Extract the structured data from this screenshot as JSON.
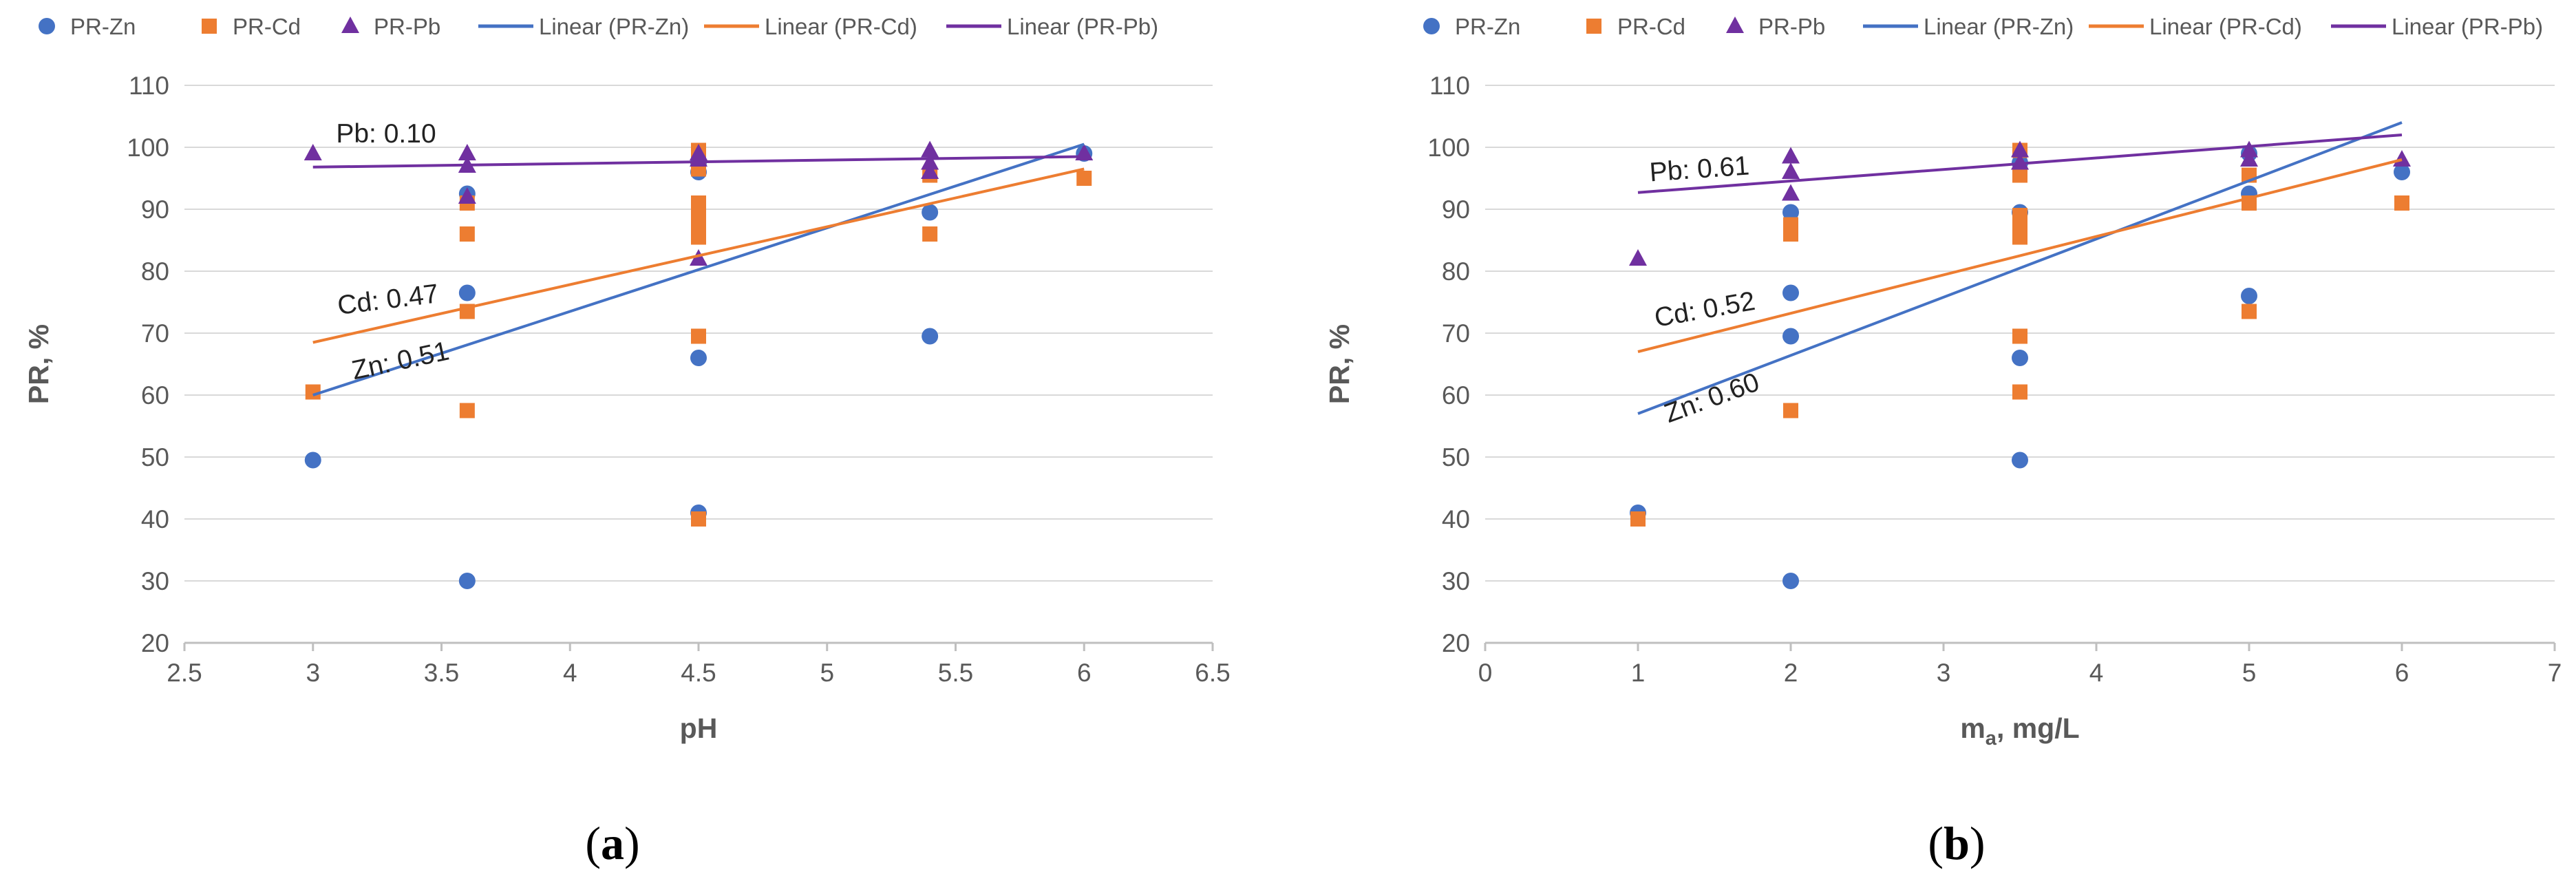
{
  "colors": {
    "zn": "#4472C4",
    "cd": "#ED7D31",
    "pb": "#7030A0",
    "grid": "#D9D9D9",
    "axis": "#BFBFBF"
  },
  "legend": {
    "items": [
      {
        "label": "PR-Zn",
        "marker": "circle",
        "series": "zn"
      },
      {
        "label": "PR-Cd",
        "marker": "square",
        "series": "cd"
      },
      {
        "label": "PR-Pb",
        "marker": "triangle",
        "series": "pb"
      },
      {
        "label": "Linear (PR-Zn)",
        "marker": "line",
        "series": "zn"
      },
      {
        "label": "Linear (PR-Cd)",
        "marker": "line",
        "series": "cd"
      },
      {
        "label": "Linear (PR-Pb)",
        "marker": "line",
        "series": "pb"
      }
    ]
  },
  "chart_data": [
    {
      "id": "a",
      "type": "scatter",
      "caption_letter": "a",
      "xlabel": "pH",
      "ylabel": "PR, %",
      "xlim": [
        2.5,
        6.5
      ],
      "ylim": [
        20,
        110
      ],
      "xticks": [
        "2.5",
        "3",
        "3.5",
        "4",
        "4.5",
        "5",
        "5.5",
        "6",
        "6.5"
      ],
      "yticks": [
        "20",
        "30",
        "40",
        "50",
        "60",
        "70",
        "80",
        "90",
        "100",
        "110"
      ],
      "grid": "horizontal",
      "series": [
        {
          "name": "PR-Zn",
          "key": "zn",
          "marker": "circle",
          "points": [
            [
              3,
              49.5
            ],
            [
              3.6,
              30
            ],
            [
              3.6,
              76.5
            ],
            [
              3.6,
              92.5
            ],
            [
              4.5,
              41
            ],
            [
              4.5,
              66
            ],
            [
              4.5,
              96
            ],
            [
              4.5,
              97.5
            ],
            [
              5.4,
              69.5
            ],
            [
              5.4,
              89.5
            ],
            [
              6,
              99
            ]
          ]
        },
        {
          "name": "PR-Cd",
          "key": "cd",
          "marker": "square",
          "points": [
            [
              3,
              60.5
            ],
            [
              3.6,
              57.5
            ],
            [
              3.6,
              73.5
            ],
            [
              3.6,
              86
            ],
            [
              3.6,
              91
            ],
            [
              4.5,
              40
            ],
            [
              4.5,
              69.5
            ],
            [
              4.5,
              85.5
            ],
            [
              4.5,
              87.5
            ],
            [
              4.5,
              89
            ],
            [
              4.5,
              91
            ],
            [
              4.5,
              96.5
            ],
            [
              4.5,
              99.5
            ],
            [
              5.4,
              86
            ],
            [
              5.4,
              95.5
            ],
            [
              6,
              95
            ]
          ]
        },
        {
          "name": "PR-Pb",
          "key": "pb",
          "marker": "triangle",
          "points": [
            [
              3,
              99
            ],
            [
              3.6,
              92
            ],
            [
              3.6,
              97
            ],
            [
              3.6,
              99
            ],
            [
              4.5,
              82
            ],
            [
              4.5,
              98
            ],
            [
              4.5,
              99
            ],
            [
              5.4,
              96
            ],
            [
              5.4,
              97.5
            ],
            [
              5.4,
              99.5
            ],
            [
              6,
              99
            ]
          ]
        }
      ],
      "trendlines": [
        {
          "name": "Linear (PR-Zn)",
          "key": "zn",
          "x": [
            3,
            6
          ],
          "y": [
            60,
            100.5
          ]
        },
        {
          "name": "Linear (PR-Cd)",
          "key": "cd",
          "x": [
            3,
            6
          ],
          "y": [
            68.5,
            96.5
          ]
        },
        {
          "name": "Linear (PR-Pb)",
          "key": "pb",
          "x": [
            3,
            6
          ],
          "y": [
            96.8,
            98.5
          ]
        }
      ],
      "annotations": [
        {
          "text": "Pb: 0.10",
          "x": 3.09,
          "y": 100.8,
          "angle": 0
        },
        {
          "text": "Cd: 0.47",
          "x": 3.1,
          "y": 73,
          "angle": -7
        },
        {
          "text": "Zn: 0.51",
          "x": 3.16,
          "y": 62.5,
          "angle": -12
        }
      ]
    },
    {
      "id": "b",
      "type": "scatter",
      "caption_letter": "b",
      "xlabel": "m",
      "xlabel_sub": "a",
      "xlabel_rest": ", mg/L",
      "ylabel": "PR, %",
      "xlim": [
        0,
        7
      ],
      "ylim": [
        20,
        110
      ],
      "xticks": [
        "0",
        "1",
        "2",
        "3",
        "4",
        "5",
        "6",
        "7"
      ],
      "yticks": [
        "20",
        "30",
        "40",
        "50",
        "60",
        "70",
        "80",
        "90",
        "100",
        "110"
      ],
      "grid": "horizontal",
      "series": [
        {
          "name": "PR-Zn",
          "key": "zn",
          "marker": "circle",
          "points": [
            [
              1,
              41
            ],
            [
              2,
              30
            ],
            [
              2,
              69.5
            ],
            [
              2,
              76.5
            ],
            [
              2,
              89.5
            ],
            [
              3.5,
              49.5
            ],
            [
              3.5,
              66
            ],
            [
              3.5,
              89.5
            ],
            [
              3.5,
              97.5
            ],
            [
              5,
              76
            ],
            [
              5,
              92.5
            ],
            [
              5,
              99
            ],
            [
              6,
              96
            ]
          ]
        },
        {
          "name": "PR-Cd",
          "key": "cd",
          "marker": "square",
          "points": [
            [
              1,
              40
            ],
            [
              2,
              57.5
            ],
            [
              2,
              86
            ],
            [
              2,
              87.5
            ],
            [
              3.5,
              60.5
            ],
            [
              3.5,
              69.5
            ],
            [
              3.5,
              85.5
            ],
            [
              3.5,
              87
            ],
            [
              3.5,
              89
            ],
            [
              3.5,
              95.5
            ],
            [
              3.5,
              99.5
            ],
            [
              5,
              73.5
            ],
            [
              5,
              91
            ],
            [
              5,
              95.5
            ],
            [
              6,
              91
            ]
          ]
        },
        {
          "name": "PR-Pb",
          "key": "pb",
          "marker": "triangle",
          "points": [
            [
              1,
              82
            ],
            [
              2,
              92.5
            ],
            [
              2,
              96
            ],
            [
              2,
              98.5
            ],
            [
              3.5,
              97.5
            ],
            [
              3.5,
              99.5
            ],
            [
              5,
              98
            ],
            [
              5,
              99.5
            ],
            [
              6,
              98
            ]
          ]
        }
      ],
      "trendlines": [
        {
          "name": "Linear (PR-Zn)",
          "key": "zn",
          "x": [
            1,
            6
          ],
          "y": [
            57,
            104
          ]
        },
        {
          "name": "Linear (PR-Cd)",
          "key": "cd",
          "x": [
            1,
            6
          ],
          "y": [
            67,
            98
          ]
        },
        {
          "name": "Linear (PR-Pb)",
          "key": "pb",
          "x": [
            1,
            6
          ],
          "y": [
            92.7,
            102
          ]
        }
      ],
      "annotations": [
        {
          "text": "Pb: 0.61",
          "x": 1.08,
          "y": 94.5,
          "angle": -4
        },
        {
          "text": "Cd: 0.52",
          "x": 1.12,
          "y": 71,
          "angle": -10
        },
        {
          "text": "Zn: 0.60",
          "x": 1.2,
          "y": 55.5,
          "angle": -20
        }
      ]
    }
  ]
}
